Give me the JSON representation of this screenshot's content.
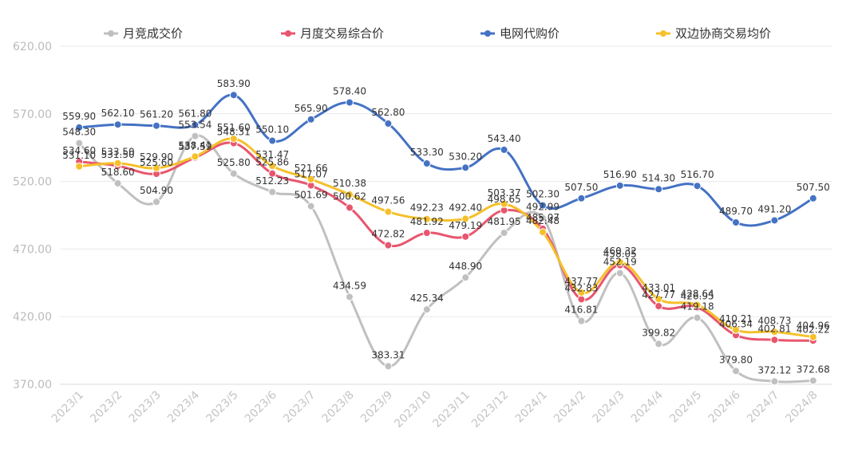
{
  "chart_data": {
    "type": "line",
    "title": "",
    "xlabel": "",
    "ylabel": "",
    "ylim": [
      370,
      620
    ],
    "yticks": [
      "370.00",
      "420.00",
      "470.00",
      "520.00",
      "570.00",
      "620.00"
    ],
    "grid": true,
    "legend_position": "top",
    "categories": [
      "2023/1",
      "2023/2",
      "2023/3",
      "2023/4",
      "2023/5",
      "2023/6",
      "2023/7",
      "2023/8",
      "2023/9",
      "2023/10",
      "2023/11",
      "2023/12",
      "2024/1",
      "2024/2",
      "2024/3",
      "2024/4",
      "2024/5",
      "2024/6",
      "2024/7",
      "2024/8"
    ],
    "series": [
      {
        "name": "月竞成交价",
        "color": "#c0c0c0",
        "values": [
          548.3,
          518.6,
          504.9,
          553.54,
          525.8,
          512.23,
          501.69,
          434.59,
          383.31,
          425.34,
          448.9,
          481.95,
          492.99,
          416.81,
          452.19,
          399.82,
          419.18,
          379.8,
          372.12,
          372.68
        ],
        "labels": [
          "548.30",
          "518.60",
          "504.90",
          "553.54",
          "525.80",
          "512.23",
          "501.69",
          "434.59",
          "383.31",
          "425.34",
          "448.90",
          "481.95",
          "492.99",
          "416.81",
          "452.19",
          "399.82",
          "419.18",
          "379.80",
          "372.12",
          "372.68"
        ]
      },
      {
        "name": "月度交易综合价",
        "color": "#e8566e",
        "values": [
          534.6,
          531.5,
          525.6,
          537.59,
          548.31,
          525.86,
          517.07,
          500.62,
          472.82,
          481.92,
          479.19,
          498.65,
          485.07,
          432.83,
          458.05,
          427.77,
          426.95,
          406.34,
          402.81,
          402.22
        ],
        "labels": [
          "534.60",
          "531.50",
          "525.60",
          "537.59",
          "548.31",
          "525.86",
          "517.07",
          "500.62",
          "472.82",
          "481.92",
          "479.19",
          "498.65",
          "485.07",
          "432.83",
          "458.05",
          "427.77",
          "426.95",
          "406.34",
          "402.81",
          "402.22"
        ]
      },
      {
        "name": "电网代购价",
        "color": "#4472c4",
        "values": [
          559.9,
          562.1,
          561.2,
          561.8,
          583.9,
          550.1,
          565.9,
          578.4,
          562.8,
          533.3,
          530.2,
          543.4,
          502.3,
          507.5,
          516.9,
          514.3,
          516.7,
          489.7,
          491.2,
          507.5
        ],
        "labels": [
          "559.90",
          "562.10",
          "561.20",
          "561.80",
          "583.90",
          "550.10",
          "565.90",
          "578.40",
          "562.80",
          "533.30",
          "530.20",
          "543.40",
          "502.30",
          "507.50",
          "516.90",
          "514.30",
          "516.70",
          "489.70",
          "491.20",
          "507.50"
        ]
      },
      {
        "name": "双边协商交易均价",
        "color": "#f5c02a",
        "values": [
          531.1,
          533.5,
          529.9,
          538.41,
          551.6,
          531.47,
          521.66,
          510.38,
          497.56,
          492.23,
          492.4,
          503.37,
          482.48,
          437.77,
          460.32,
          433.01,
          428.64,
          410.21,
          408.73,
          404.96
        ],
        "labels": [
          "531.10",
          "533.50",
          "529.90",
          "538.41",
          "551.60",
          "531.47",
          "521.66",
          "510.38",
          "497.56",
          "492.23",
          "492.40",
          "503.37",
          "482.48",
          "437.77",
          "460.32",
          "433.01",
          "428.64",
          "410.21",
          "408.73",
          "404.96"
        ]
      }
    ]
  }
}
